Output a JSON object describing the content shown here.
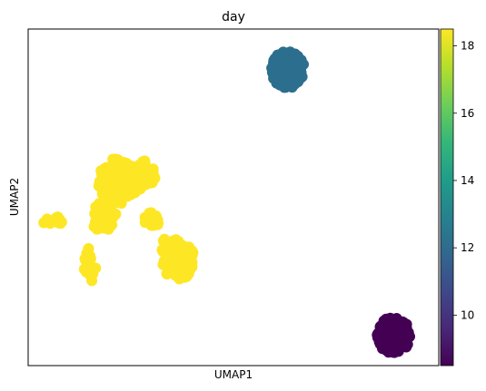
{
  "chart_data": {
    "type": "scatter",
    "title": "day",
    "xlabel": "UMAP1",
    "ylabel": "UMAP2",
    "xticks": false,
    "yticks": false,
    "grid": false,
    "xlim": [
      0,
      100
    ],
    "ylim": [
      0,
      100
    ],
    "colorbar": {
      "colormap": "viridis",
      "range": [
        8.5,
        18.5
      ],
      "ticks": [
        "10",
        "12",
        "14",
        "16",
        "18"
      ],
      "tick_values": [
        10,
        12,
        14,
        16,
        18
      ],
      "stops": [
        "#440154",
        "#482878",
        "#3e4989",
        "#31688e",
        "#26828e",
        "#1f9e89",
        "#35b779",
        "#6ece58",
        "#b5de2b",
        "#fde725"
      ]
    },
    "clusters": [
      {
        "value": 12.3,
        "color": "#2c6e8e",
        "cx": 63.2,
        "cy": 88.0,
        "rx": 4.0,
        "ry": 5.5,
        "n": 150
      },
      {
        "value": 9.0,
        "color": "#440154",
        "cx": 89.0,
        "cy": 9.0,
        "rx": 4.0,
        "ry": 5.5,
        "n": 150
      },
      {
        "value": 18.5,
        "color": "#fde725",
        "cx": 22.0,
        "cy": 55.0,
        "rx": 5.0,
        "ry": 7.0,
        "n": 140
      },
      {
        "value": 18.5,
        "color": "#fde725",
        "cx": 27.5,
        "cy": 56.5,
        "rx": 3.5,
        "ry": 4.5,
        "n": 50
      },
      {
        "value": 18.5,
        "color": "#fde725",
        "cx": 18.5,
        "cy": 44.0,
        "rx": 3.0,
        "ry": 5.0,
        "n": 40
      },
      {
        "value": 18.5,
        "color": "#fde725",
        "cx": 15.0,
        "cy": 30.0,
        "rx": 1.5,
        "ry": 5.5,
        "n": 25
      },
      {
        "value": 18.5,
        "color": "#fde725",
        "cx": 6.0,
        "cy": 43.0,
        "rx": 2.5,
        "ry": 1.5,
        "n": 15
      },
      {
        "value": 18.5,
        "color": "#fde725",
        "cx": 30.0,
        "cy": 43.0,
        "rx": 2.0,
        "ry": 2.5,
        "n": 20
      },
      {
        "value": 18.5,
        "color": "#fde725",
        "cx": 36.5,
        "cy": 31.5,
        "rx": 4.0,
        "ry": 6.0,
        "n": 90
      },
      {
        "value": 18.5,
        "color": "#fde725",
        "cx": 34.5,
        "cy": 34.0,
        "rx": 2.5,
        "ry": 4.5,
        "n": 35
      }
    ]
  }
}
